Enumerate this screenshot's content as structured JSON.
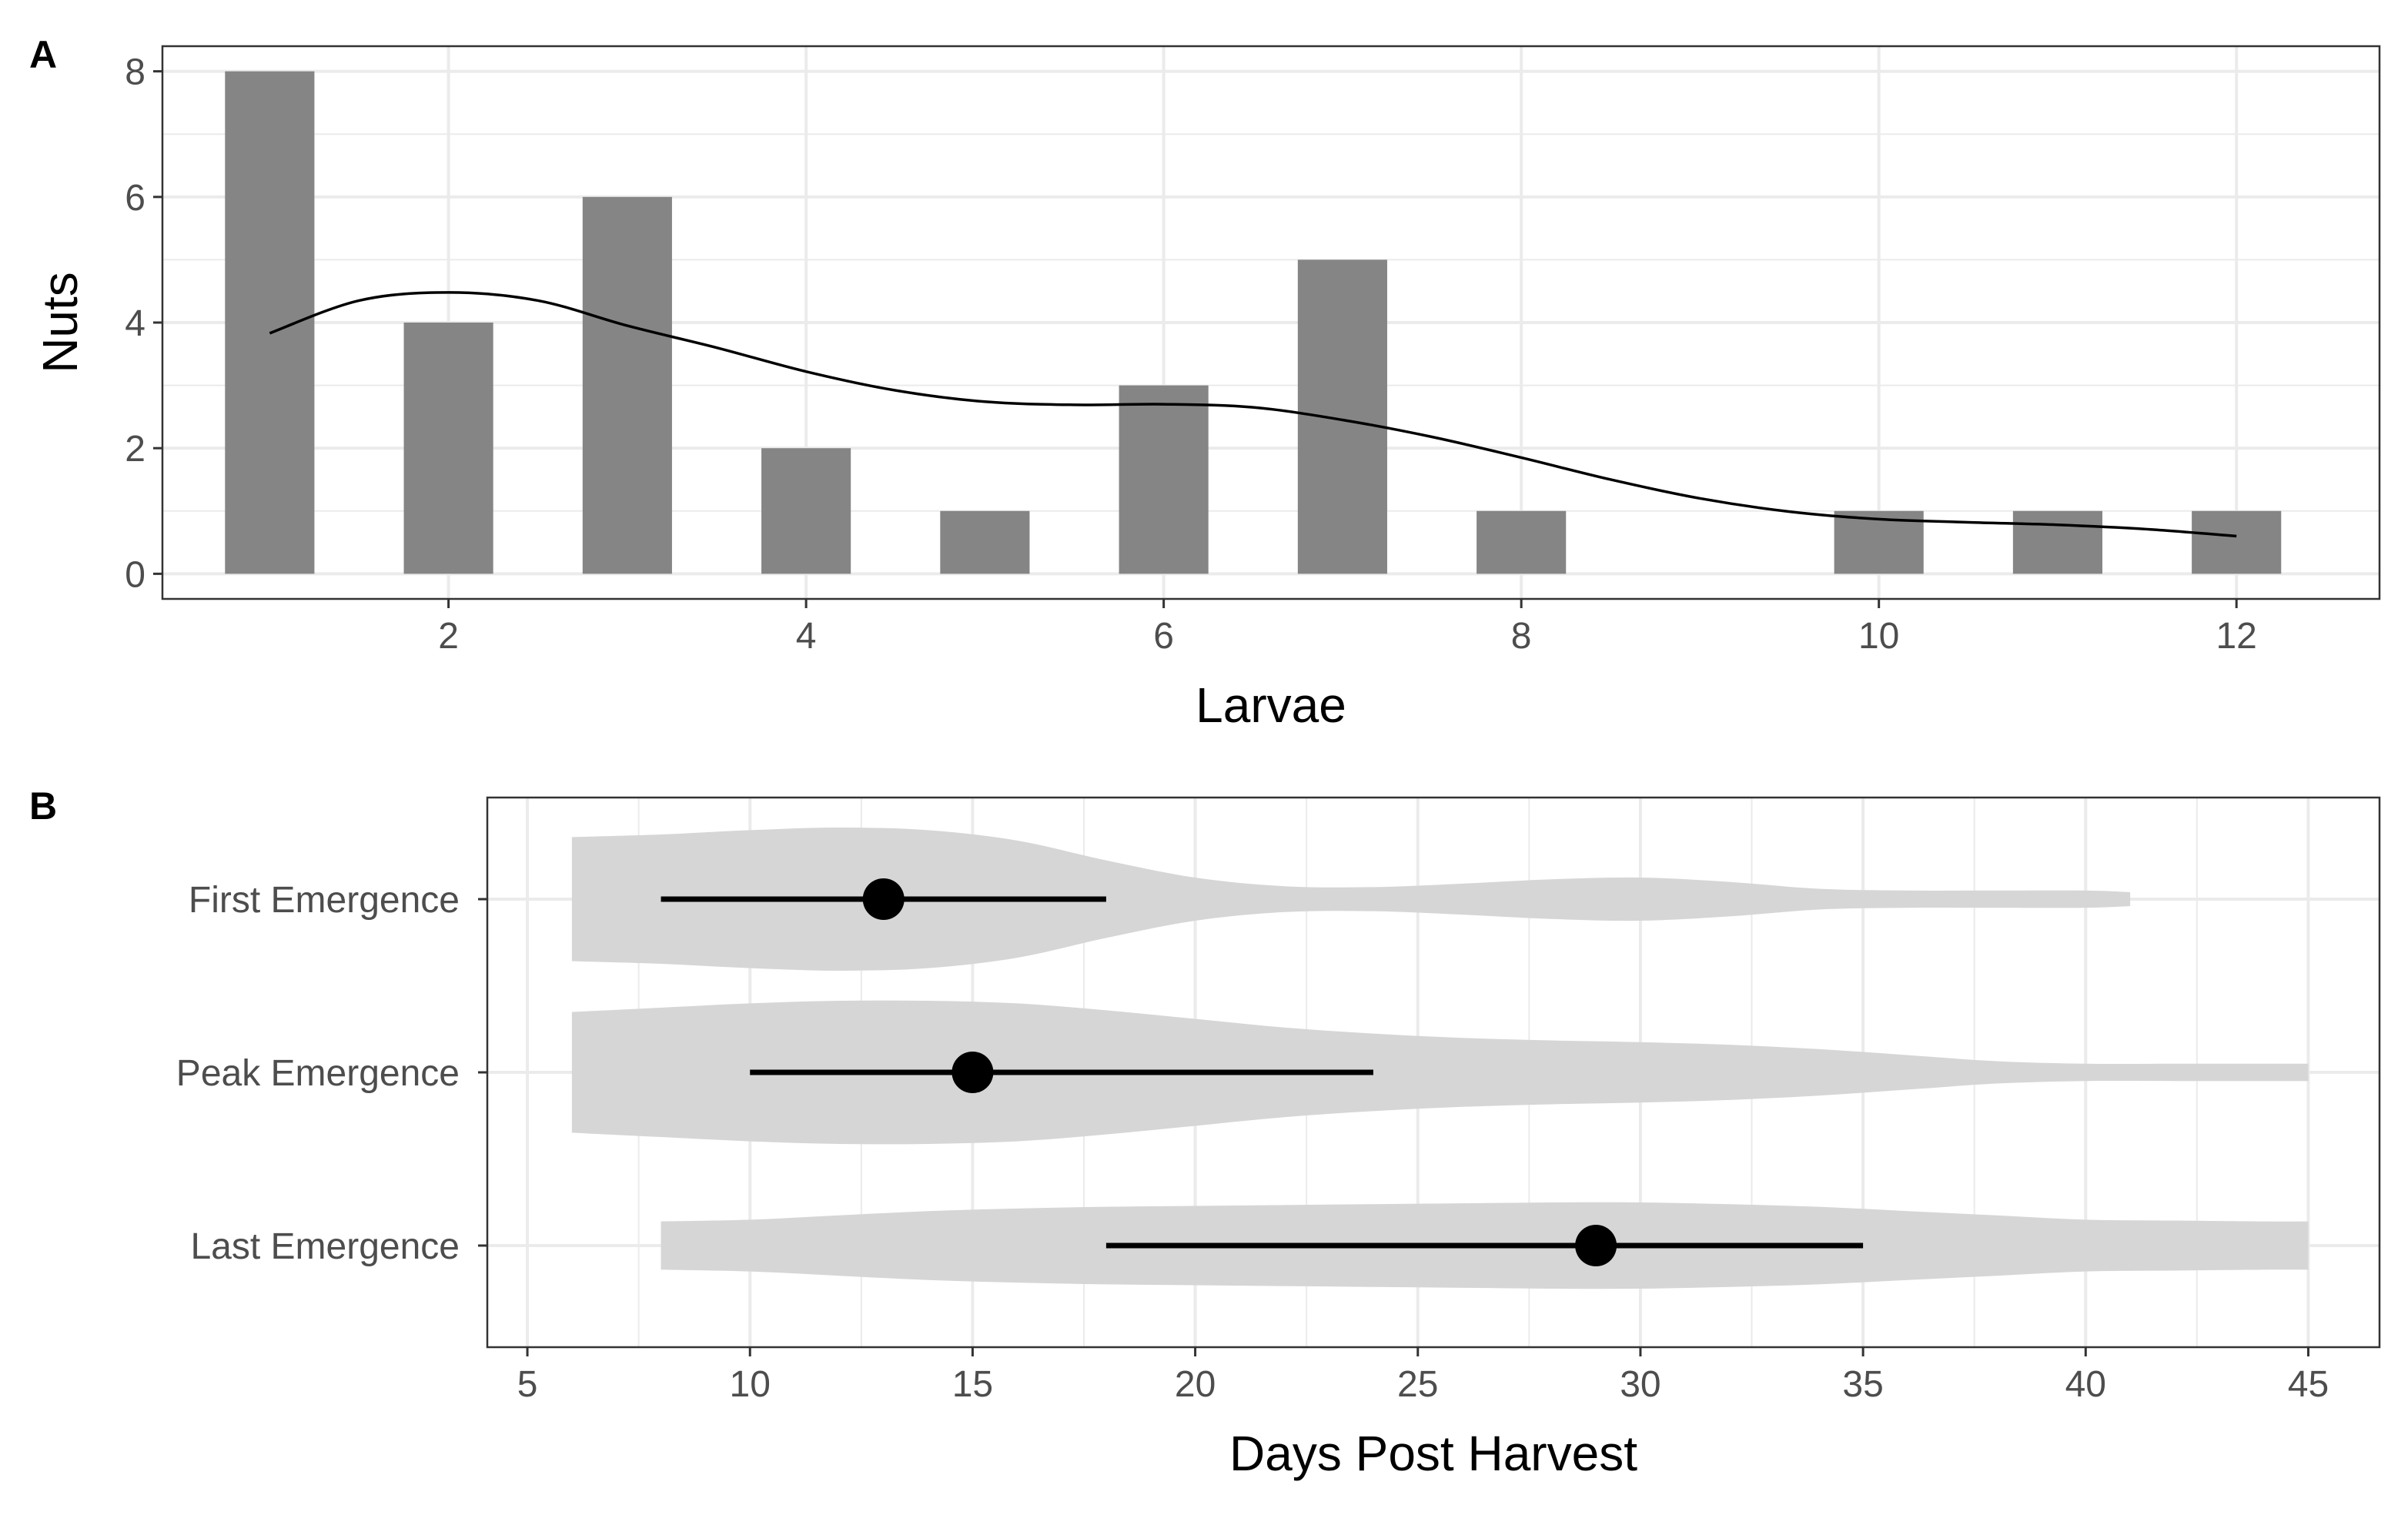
{
  "colors": {
    "bar_fill": "#858585",
    "violin_fill": "#d6d6d6",
    "grid": "#ebebeb",
    "panel_border": "#333333",
    "tick_text": "#4d4d4d",
    "point": "#000000"
  },
  "chart_data": [
    {
      "panel_label": "A",
      "type": "bar",
      "xlabel": "Larvae",
      "ylabel": "Nuts",
      "xlim": [
        0.4,
        12.8
      ],
      "ylim": [
        -0.4,
        8.4
      ],
      "x_ticks": [
        2,
        4,
        6,
        8,
        10,
        12
      ],
      "y_ticks": [
        0,
        2,
        4,
        6,
        8
      ],
      "grid": true,
      "x": [
        1,
        2,
        3,
        4,
        5,
        6,
        7,
        8,
        10,
        11,
        12
      ],
      "values": [
        8,
        4,
        6,
        2,
        1,
        3,
        5,
        1,
        1,
        1,
        1
      ],
      "smooth_line": {
        "x": [
          1,
          1.5,
          2,
          2.5,
          3,
          3.5,
          4,
          4.5,
          5,
          5.5,
          6,
          6.5,
          7,
          7.5,
          8,
          8.5,
          9,
          9.5,
          10,
          10.5,
          11,
          11.5,
          12
        ],
        "y": [
          3.83,
          4.35,
          4.48,
          4.35,
          3.95,
          3.6,
          3.22,
          2.92,
          2.74,
          2.69,
          2.7,
          2.65,
          2.45,
          2.18,
          1.85,
          1.5,
          1.2,
          0.99,
          0.87,
          0.82,
          0.78,
          0.71,
          0.6
        ]
      }
    },
    {
      "panel_label": "B",
      "type": "violin",
      "xlabel": "Days Post Harvest",
      "xlim": [
        4.1,
        46.6
      ],
      "x_ticks": [
        5,
        10,
        15,
        20,
        25,
        30,
        35,
        40,
        45
      ],
      "grid": true,
      "categories": [
        "First Emergence",
        "Peak Emergence",
        "Last Emergence"
      ],
      "series": [
        {
          "category": "First Emergence",
          "point": 13,
          "range": [
            8,
            18
          ],
          "violin_x": [
            6,
            8,
            10,
            12,
            14,
            16,
            18,
            20,
            22,
            24,
            26,
            28,
            30,
            32,
            34,
            36,
            38,
            40,
            41
          ],
          "violin_halfwidth": [
            0.72,
            0.75,
            0.8,
            0.83,
            0.8,
            0.68,
            0.45,
            0.25,
            0.15,
            0.14,
            0.18,
            0.23,
            0.25,
            0.2,
            0.12,
            0.1,
            0.1,
            0.1,
            0.08
          ]
        },
        {
          "category": "Peak Emergence",
          "point": 15,
          "range": [
            10,
            24
          ],
          "violin_x": [
            6,
            8,
            10,
            12,
            14,
            16,
            18,
            20,
            22,
            24,
            26,
            28,
            30,
            32,
            34,
            36,
            38,
            40,
            42,
            44,
            45
          ],
          "violin_halfwidth": [
            0.7,
            0.75,
            0.8,
            0.83,
            0.83,
            0.8,
            0.72,
            0.62,
            0.52,
            0.45,
            0.4,
            0.37,
            0.35,
            0.32,
            0.27,
            0.2,
            0.13,
            0.1,
            0.1,
            0.1,
            0.1
          ]
        },
        {
          "category": "Last Emergence",
          "point": 29,
          "range": [
            18,
            35
          ],
          "violin_x": [
            8,
            10,
            12,
            14,
            16,
            18,
            20,
            22,
            24,
            26,
            28,
            30,
            32,
            34,
            36,
            38,
            40,
            42,
            44,
            45
          ],
          "violin_halfwidth": [
            0.28,
            0.3,
            0.35,
            0.4,
            0.43,
            0.45,
            0.46,
            0.47,
            0.48,
            0.49,
            0.5,
            0.5,
            0.48,
            0.45,
            0.4,
            0.35,
            0.3,
            0.29,
            0.28,
            0.28
          ]
        }
      ]
    }
  ]
}
